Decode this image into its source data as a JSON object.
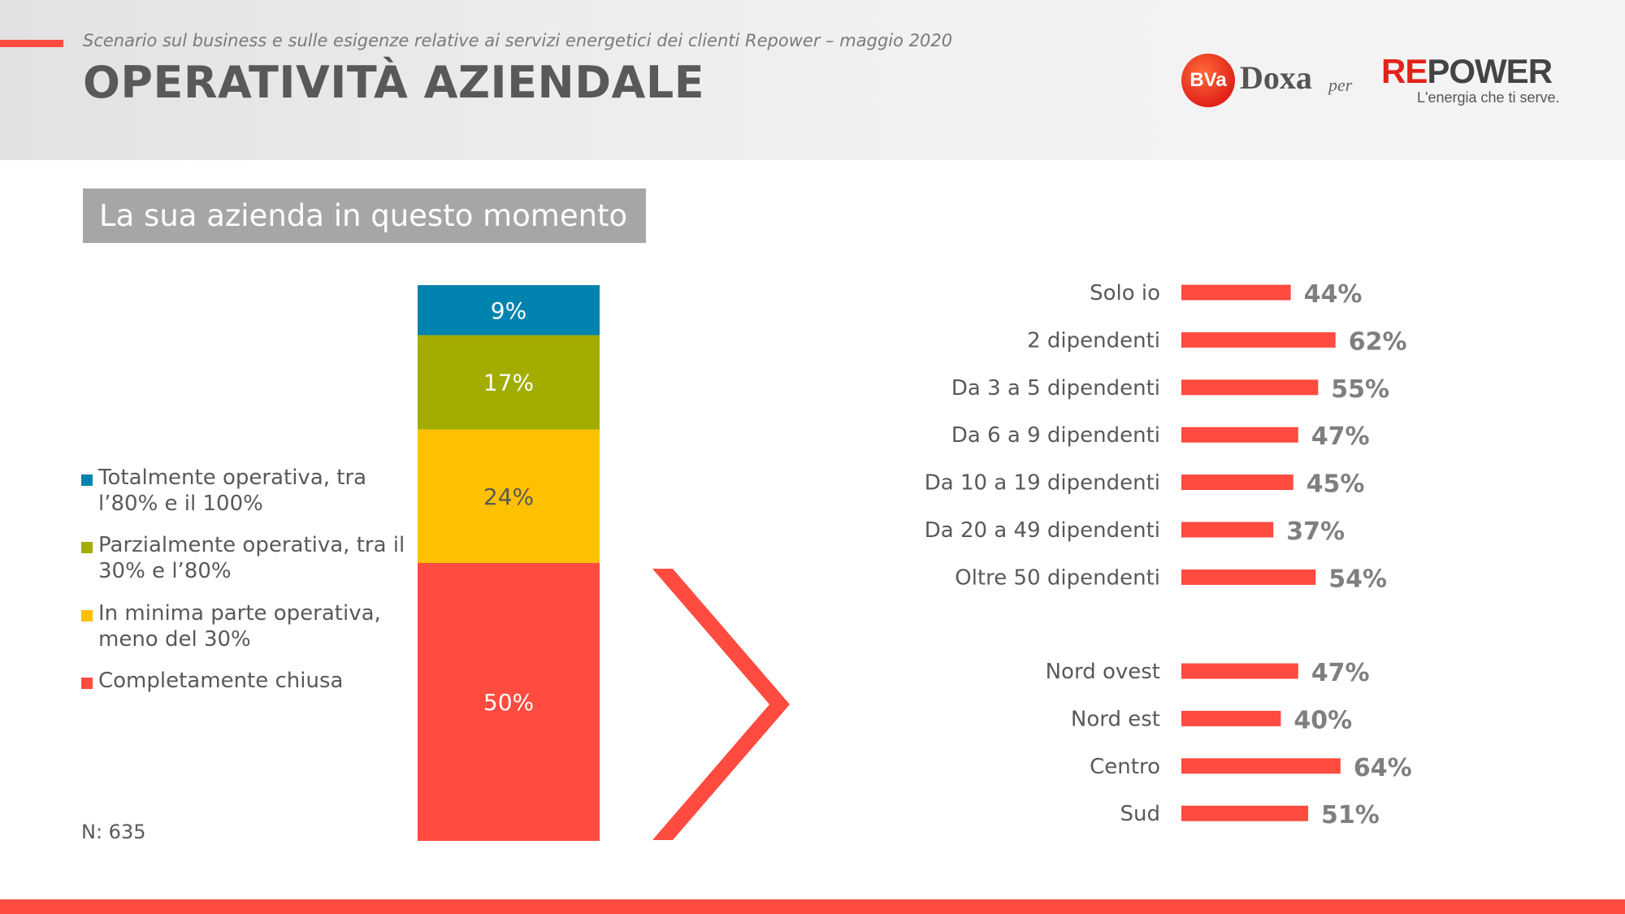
{
  "header": {
    "subtitle": "Scenario sul business e sulle esigenze relative ai servizi energetici dei clienti Repower – maggio 2020",
    "title": "OPERATIVITÀ AZIENDALE",
    "logo_bva": "BVa",
    "logo_doxa": "Doxa",
    "logo_per": "per",
    "logo_repower_re": "RE",
    "logo_repower_rest": "POWER",
    "logo_repower_tagline": "L'energia che ti serve."
  },
  "question": "La sua azienda in questo momento è:",
  "sample": "N: 635",
  "colors": {
    "accent": "#ff4b40",
    "blue": "#0083ae",
    "green": "#a2ad00",
    "yellow": "#ffc000",
    "red": "#ff4b40",
    "text": "#595959"
  },
  "chart_data": [
    {
      "type": "bar",
      "stacked": true,
      "series": [
        {
          "name": "Totalmente operativa, tra l’80% e il 100%",
          "value": 9,
          "label": "9%",
          "color": "#0083ae"
        },
        {
          "name": "Parzialmente operativa, tra il 30% e l’80%",
          "value": 17,
          "label": "17%",
          "color": "#a2ad00"
        },
        {
          "name": "In minima parte operativa, meno del 30%",
          "value": 24,
          "label": "24%",
          "color": "#ffc000"
        },
        {
          "name": "Completamente chiusa",
          "value": 50,
          "label": "50%",
          "color": "#ff4b40"
        }
      ],
      "legend_position": "left"
    },
    {
      "type": "bar",
      "orientation": "horizontal",
      "groups": [
        {
          "categories": [
            "Solo io",
            "2 dipendenti",
            "Da 3 a 5 dipendenti",
            "Da 6 a 9 dipendenti",
            "Da 10 a 19 dipendenti",
            "Da 20 a 49 dipendenti",
            "Oltre 50 dipendenti"
          ],
          "values": [
            44,
            62,
            55,
            47,
            45,
            37,
            54
          ],
          "labels": [
            "44%",
            "62%",
            "55%",
            "47%",
            "45%",
            "37%",
            "54%"
          ]
        },
        {
          "categories": [
            "Nord ovest",
            "Nord est",
            "Centro",
            "Sud"
          ],
          "values": [
            47,
            40,
            64,
            51
          ],
          "labels": [
            "47%",
            "40%",
            "64%",
            "51%"
          ]
        }
      ],
      "color": "#ff4b40"
    }
  ]
}
